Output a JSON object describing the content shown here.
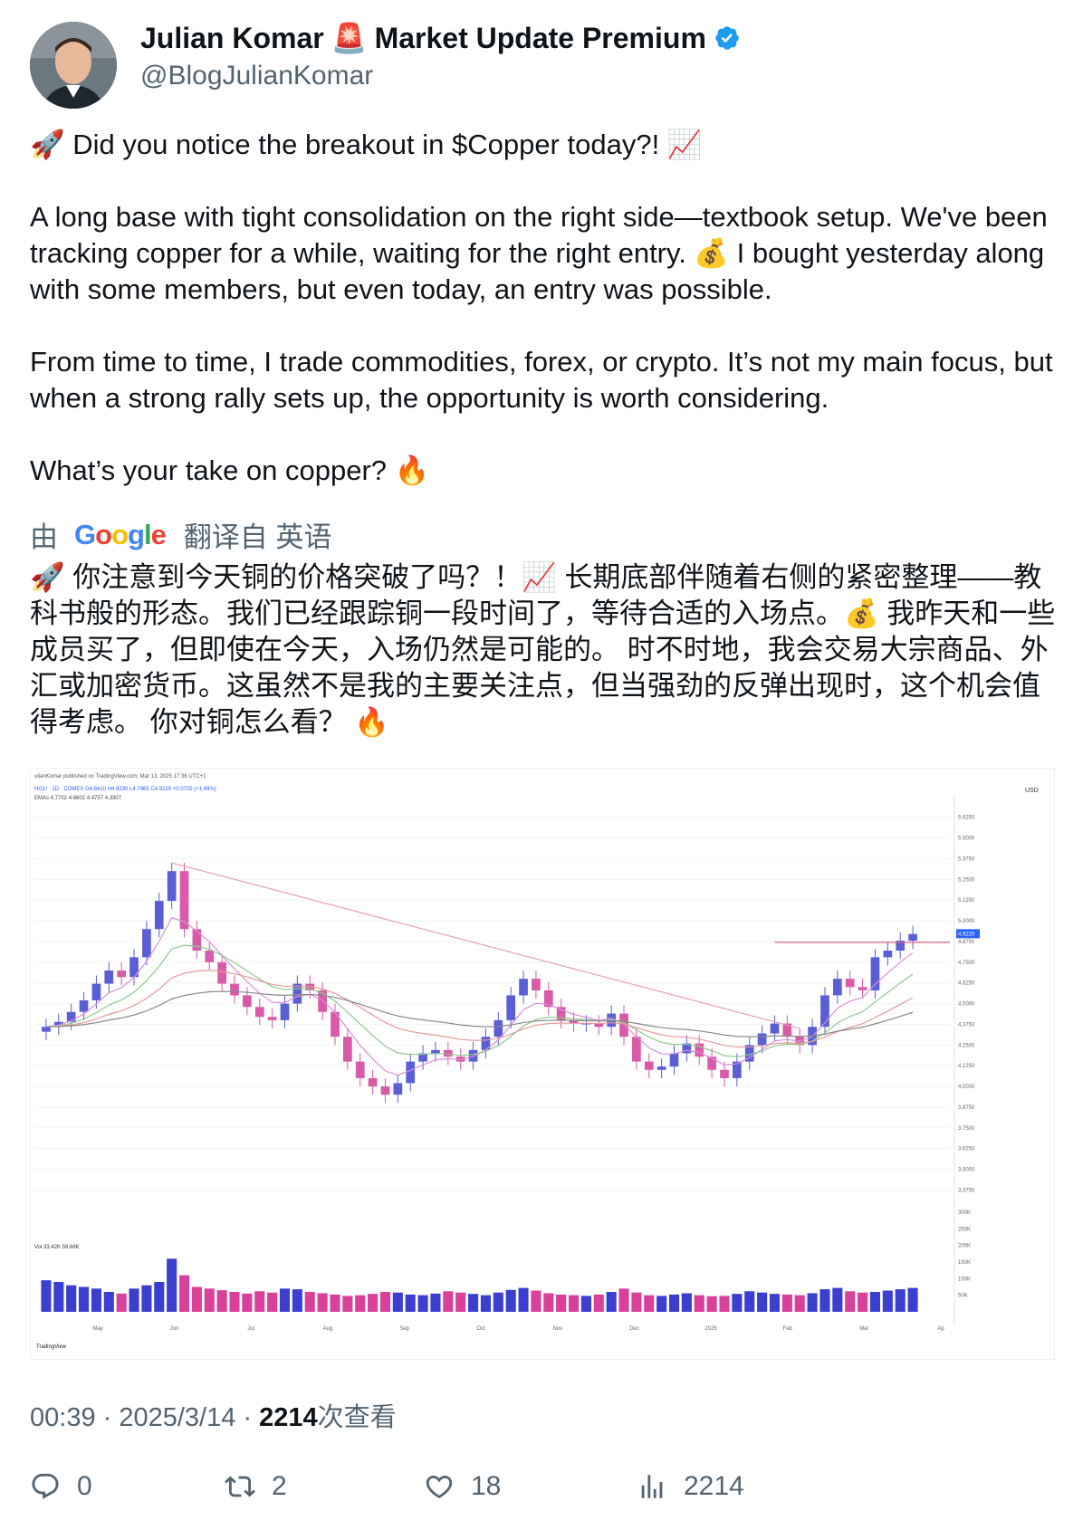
{
  "author": {
    "name": "Julian Komar",
    "badge_emoji": "🚨",
    "name_suffix": "Market Update Premium",
    "handle": "@BlogJulianKomar",
    "verified": true,
    "verified_color": "#1d9bf0"
  },
  "tweet": {
    "line1": "🚀 Did you notice the breakout in $Copper today?! 📈",
    "para2": "A long base with tight consolidation on the right side—textbook setup. We've been tracking copper for a while, waiting for the right entry. 💰 I bought yesterday along with some members, but even today, an entry was possible.",
    "para3": "From time to time, I trade commodities, forex, or crypto. It’s not my main focus, but when a strong rally sets up, the opportunity is worth considering.",
    "para4": "What’s your take on copper? 🔥"
  },
  "translation": {
    "prefix": "由",
    "brand": "Google",
    "suffix": "翻译自 英语",
    "text": "🚀 你注意到今天铜的价格突破了吗？！📈 长期底部伴随着右侧的紧密整理——教科书般的形态。我们已经跟踪铜一段时间了，等待合适的入场点。💰 我昨天和一些成员买了，但即使在今天，入场仍然是可能的。 时不时地，我会交易大宗商品、外汇或加密货币。这虽然不是我的主要关注点，但当强劲的反弹出现时，这个机会值得考虑。 你对铜怎么看？ 🔥"
  },
  "chart_data": {
    "type": "candlestick",
    "header": "ulianKomar published on TradingView.com, Mar 13, 2025 17:36 UTC+1",
    "symbol_line": "HG1! · 1D · COMEX  O4.8410  H4.9230  L4.7965  C4.9220  +0.0725 (+1.49%)",
    "ema_line": "EMAs  4.7702  4.6602  4.4757  4.3307",
    "currency": "USD",
    "last_price": "4.9220",
    "y_ticks": [
      "5.6250",
      "5.5000",
      "5.3750",
      "5.2500",
      "5.1250",
      "5.0000",
      "4.8750",
      "4.7500",
      "4.6250",
      "4.5000",
      "4.3750",
      "4.2500",
      "4.1250",
      "4.0000",
      "3.8750",
      "3.7500",
      "3.6250",
      "3.5000",
      "3.3750"
    ],
    "ylim": [
      3.35,
      5.7
    ],
    "x_labels": [
      "May",
      "Jun",
      "Jul",
      "Aug",
      "Sep",
      "Oct",
      "Nov",
      "Dec",
      "2025",
      "Feb",
      "Mar",
      "Ap"
    ],
    "close_series": [
      4.36,
      4.39,
      4.45,
      4.52,
      4.62,
      4.7,
      4.66,
      4.78,
      4.95,
      5.12,
      5.3,
      4.95,
      4.82,
      4.75,
      4.62,
      4.55,
      4.48,
      4.42,
      4.4,
      4.5,
      4.62,
      4.58,
      4.45,
      4.3,
      4.15,
      4.05,
      4.0,
      3.95,
      4.02,
      4.15,
      4.2,
      4.22,
      4.18,
      4.15,
      4.22,
      4.3,
      4.4,
      4.55,
      4.65,
      4.58,
      4.48,
      4.4,
      4.38,
      4.38,
      4.36,
      4.44,
      4.3,
      4.15,
      4.1,
      4.12,
      4.2,
      4.26,
      4.18,
      4.1,
      4.05,
      4.15,
      4.25,
      4.32,
      4.38,
      4.3,
      4.25,
      4.36,
      4.55,
      4.65,
      4.6,
      4.58,
      4.78,
      4.82,
      4.88,
      4.92
    ],
    "volume_label": "Vol  33.42K  58.66K",
    "vol_ticks": [
      "300K",
      "250K",
      "200K",
      "150K",
      "100K",
      "50K"
    ],
    "volume": [
      95,
      90,
      80,
      75,
      70,
      60,
      55,
      70,
      80,
      90,
      160,
      110,
      75,
      70,
      65,
      60,
      55,
      62,
      58,
      70,
      68,
      60,
      56,
      52,
      48,
      50,
      54,
      60,
      58,
      52,
      50,
      55,
      62,
      58,
      54,
      50,
      58,
      66,
      72,
      64,
      56,
      52,
      50,
      48,
      52,
      60,
      70,
      58,
      50,
      48,
      52,
      56,
      50,
      47,
      48,
      54,
      62,
      58,
      54,
      52,
      50,
      56,
      68,
      72,
      62,
      58,
      60,
      64,
      68,
      72
    ],
    "watermark": "TradingView"
  },
  "meta": {
    "time": "00:39",
    "date": "2025/3/14",
    "views": "2214",
    "views_label": "次查看"
  },
  "actions": {
    "replies": "0",
    "reposts": "2",
    "likes": "18",
    "views": "2214"
  }
}
